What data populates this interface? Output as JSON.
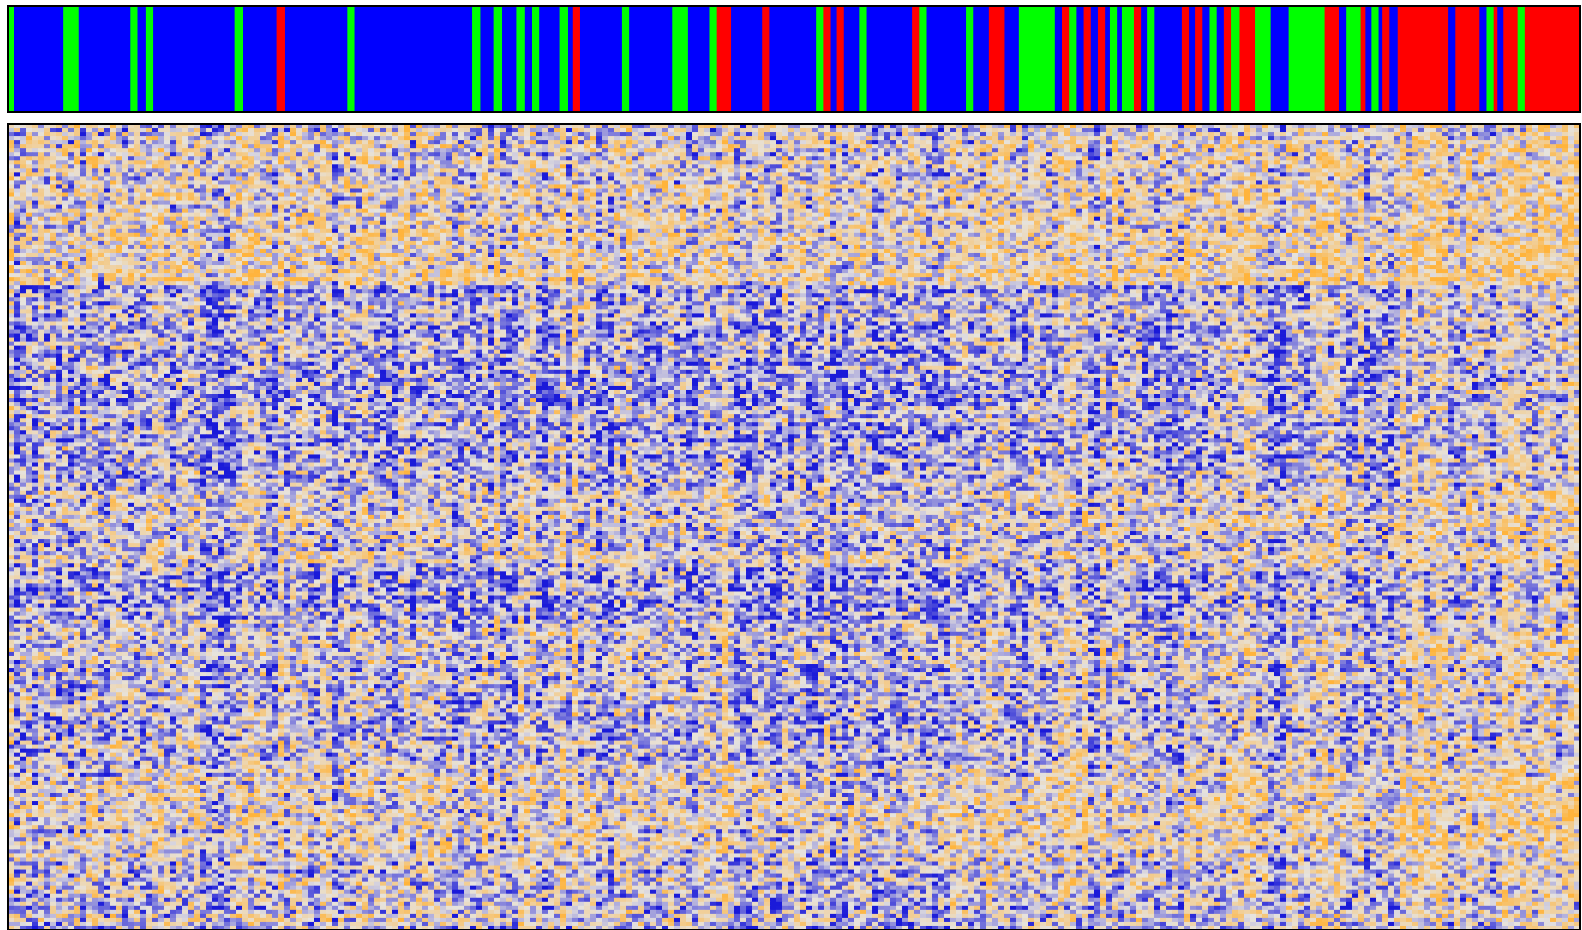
{
  "chart_data": {
    "type": "heatmap",
    "title": "",
    "xlabel": "",
    "ylabel": "",
    "legend": "none",
    "annotation_track": {
      "group_colors": {
        "A": "#0000ff",
        "B": "#00ff00",
        "C": "#ff0000"
      },
      "segments": [
        {
          "group": "B",
          "span": 1.0
        },
        {
          "group": "A",
          "span": 8.2
        },
        {
          "group": "B",
          "span": 2.6
        },
        {
          "group": "A",
          "span": 8.6
        },
        {
          "group": "B",
          "span": 1.2
        },
        {
          "group": "A",
          "span": 1.4
        },
        {
          "group": "B",
          "span": 1.2
        },
        {
          "group": "A",
          "span": 13.6
        },
        {
          "group": "B",
          "span": 1.4
        },
        {
          "group": "A",
          "span": 5.6
        },
        {
          "group": "C",
          "span": 1.4
        },
        {
          "group": "A",
          "span": 10.4
        },
        {
          "group": "B",
          "span": 1.2
        },
        {
          "group": "A",
          "span": 19.6
        },
        {
          "group": "B",
          "span": 1.4
        },
        {
          "group": "A",
          "span": 2.2
        },
        {
          "group": "B",
          "span": 1.4
        },
        {
          "group": "A",
          "span": 2.4
        },
        {
          "group": "B",
          "span": 1.4
        },
        {
          "group": "A",
          "span": 1.2
        },
        {
          "group": "B",
          "span": 1.2
        },
        {
          "group": "A",
          "span": 3.4
        },
        {
          "group": "B",
          "span": 1.4
        },
        {
          "group": "A",
          "span": 0.8
        },
        {
          "group": "C",
          "span": 1.2
        },
        {
          "group": "A",
          "span": 7.0
        },
        {
          "group": "B",
          "span": 1.2
        },
        {
          "group": "A",
          "span": 7.2
        },
        {
          "group": "B",
          "span": 2.6
        },
        {
          "group": "A",
          "span": 3.6
        },
        {
          "group": "B",
          "span": 1.2
        },
        {
          "group": "C",
          "span": 2.4
        },
        {
          "group": "A",
          "span": 5.2
        },
        {
          "group": "C",
          "span": 1.2
        },
        {
          "group": "A",
          "span": 7.8
        },
        {
          "group": "B",
          "span": 1.2
        },
        {
          "group": "C",
          "span": 1.2
        },
        {
          "group": "A",
          "span": 1.0
        },
        {
          "group": "C",
          "span": 1.2
        },
        {
          "group": "A",
          "span": 2.6
        },
        {
          "group": "B",
          "span": 1.2
        },
        {
          "group": "A",
          "span": 7.6
        },
        {
          "group": "C",
          "span": 1.2
        },
        {
          "group": "B",
          "span": 1.2
        },
        {
          "group": "A",
          "span": 6.6
        },
        {
          "group": "B",
          "span": 1.2
        },
        {
          "group": "A",
          "span": 2.6
        },
        {
          "group": "C",
          "span": 2.6
        },
        {
          "group": "A",
          "span": 2.4
        },
        {
          "group": "B",
          "span": 6.0
        },
        {
          "group": "A",
          "span": 1.2
        },
        {
          "group": "C",
          "span": 1.2
        },
        {
          "group": "B",
          "span": 1.2
        },
        {
          "group": "A",
          "span": 1.2
        },
        {
          "group": "C",
          "span": 1.2
        },
        {
          "group": "A",
          "span": 1.2
        },
        {
          "group": "C",
          "span": 1.2
        },
        {
          "group": "A",
          "span": 0.8
        },
        {
          "group": "B",
          "span": 1.2
        },
        {
          "group": "A",
          "span": 0.8
        },
        {
          "group": "B",
          "span": 2.0
        },
        {
          "group": "C",
          "span": 1.2
        },
        {
          "group": "A",
          "span": 1.0
        },
        {
          "group": "B",
          "span": 1.2
        },
        {
          "group": "A",
          "span": 3.4
        },
        {
          "group": "A",
          "span": 1.2
        },
        {
          "group": "C",
          "span": 1.2
        },
        {
          "group": "A",
          "span": 1.0
        },
        {
          "group": "C",
          "span": 1.2
        },
        {
          "group": "A",
          "span": 1.2
        },
        {
          "group": "B",
          "span": 1.2
        },
        {
          "group": "A",
          "span": 1.2
        },
        {
          "group": "C",
          "span": 1.2
        },
        {
          "group": "B",
          "span": 1.4
        },
        {
          "group": "C",
          "span": 2.6
        },
        {
          "group": "B",
          "span": 2.6
        },
        {
          "group": "A",
          "span": 3.0
        },
        {
          "group": "B",
          "span": 6.0
        },
        {
          "group": "C",
          "span": 2.4
        },
        {
          "group": "A",
          "span": 1.2
        },
        {
          "group": "B",
          "span": 2.4
        },
        {
          "group": "C",
          "span": 0.8
        },
        {
          "group": "A",
          "span": 1.0
        },
        {
          "group": "B",
          "span": 1.2
        },
        {
          "group": "A",
          "span": 0.6
        },
        {
          "group": "C",
          "span": 1.2
        },
        {
          "group": "A",
          "span": 1.4
        },
        {
          "group": "C",
          "span": 4.2
        },
        {
          "group": "C",
          "span": 4.2
        },
        {
          "group": "A",
          "span": 1.2
        },
        {
          "group": "C",
          "span": 4.0
        },
        {
          "group": "A",
          "span": 1.2
        },
        {
          "group": "B",
          "span": 1.2
        },
        {
          "group": "C",
          "span": 0.6
        },
        {
          "group": "A",
          "span": 1.0
        },
        {
          "group": "C",
          "span": 0.8
        },
        {
          "group": "C",
          "span": 1.6
        },
        {
          "group": "B",
          "span": 1.2
        },
        {
          "group": "C",
          "span": 9.2
        }
      ]
    },
    "matrix": {
      "color_scale": {
        "low": "#1a1ad9",
        "mid": "#e6e3de",
        "high": "#ffb43c",
        "domain": [
          -3,
          0,
          3
        ]
      },
      "row_bands": [
        {
          "row_from": 0.0,
          "row_to": 0.05,
          "tone": 0.05
        },
        {
          "row_from": 0.05,
          "row_to": 0.2,
          "tone": 0.15
        },
        {
          "row_from": 0.2,
          "row_to": 0.45,
          "tone": -0.2
        },
        {
          "row_from": 0.45,
          "row_to": 0.55,
          "tone": 0.0
        },
        {
          "row_from": 0.55,
          "row_to": 0.62,
          "tone": -0.25
        },
        {
          "row_from": 0.62,
          "row_to": 0.8,
          "tone": -0.1
        },
        {
          "row_from": 0.8,
          "row_to": 0.9,
          "tone": 0.1
        },
        {
          "row_from": 0.9,
          "row_to": 1.0,
          "tone": -0.05
        }
      ]
    }
  }
}
